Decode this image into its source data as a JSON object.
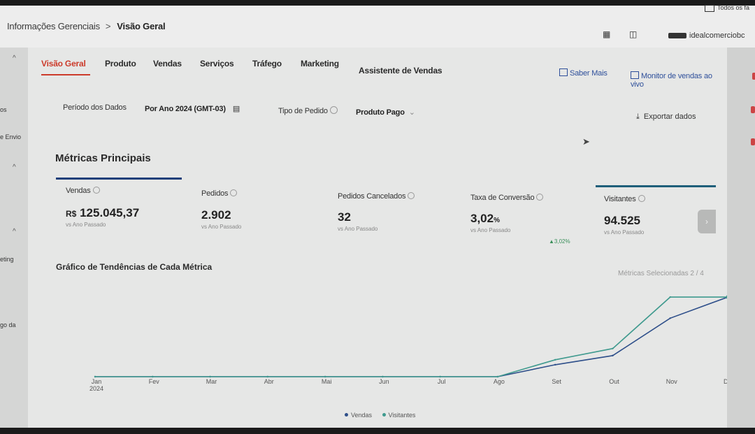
{
  "breadcrumb": {
    "parent": "Informações Gerenciais",
    "separator": ">",
    "current": "Visão Geral"
  },
  "browser": {
    "bookmarks_label": "Todos os fa"
  },
  "user": {
    "store_name": "idealcomerciobc"
  },
  "sidebar": {
    "items": [
      {
        "label": "os"
      },
      {
        "label": "e Envio"
      },
      {
        "label": "eting"
      },
      {
        "label": "go da"
      }
    ],
    "chevron": "^"
  },
  "tabs": [
    {
      "label": "Visão Geral",
      "active": true
    },
    {
      "label": "Produto"
    },
    {
      "label": "Vendas"
    },
    {
      "label": "Serviços"
    },
    {
      "label": "Tráfego"
    },
    {
      "label": "Marketing"
    },
    {
      "label": "Assistente de Vendas"
    }
  ],
  "links": {
    "learn_more": "Saber Mais",
    "live_monitor": "Monitor de vendas ao vivo"
  },
  "filters": {
    "period_label": "Período dos Dados",
    "period_value": "Por Ano  2024 (GMT-03)",
    "order_type_label": "Tipo de Pedido",
    "order_type_value": "Produto Pago"
  },
  "export_label": "Exportar dados",
  "metrics_section": {
    "title": "Métricas Principais"
  },
  "metrics": [
    {
      "label": "Vendas",
      "currency": "R$",
      "value": "125.045,37",
      "comparison": "vs Ano Passado"
    },
    {
      "label": "Pedidos",
      "value": "2.902",
      "comparison": "vs Ano Passado"
    },
    {
      "label": "Pedidos Cancelados",
      "value": "32",
      "comparison": "vs Ano Passado"
    },
    {
      "label": "Taxa de Conversão",
      "value": "3,02",
      "unit": "%",
      "comparison": "vs Ano Passado",
      "delta": "▲3,02%"
    },
    {
      "label": "Visitantes",
      "value": "94.525",
      "comparison": "vs Ano Passado"
    }
  ],
  "chart": {
    "title": "Gráfico de Tendências de Cada Métrica",
    "selected_metrics": "Métricas Selecionadas 2 / 4"
  },
  "chart_data": {
    "type": "line",
    "title": "Gráfico de Tendências de Cada Métrica",
    "categories": [
      "Jan\n2024",
      "Fev",
      "Mar",
      "Abr",
      "Mai",
      "Jun",
      "Jul",
      "Ago",
      "Set",
      "Out",
      "Nov",
      "Dez"
    ],
    "series": [
      {
        "name": "Vendas",
        "color": "#2e4f8a",
        "values": [
          0,
          0,
          0,
          0,
          0,
          0,
          0,
          0,
          0.17,
          0.3,
          0.83,
          1.13
        ]
      },
      {
        "name": "Visitantes",
        "color": "#3f9a8e",
        "values": [
          0,
          0,
          0,
          0,
          0,
          0,
          0,
          0,
          0.24,
          0.4,
          1.13,
          1.13
        ]
      }
    ],
    "ylim": [
      0,
      1.2
    ],
    "grid": false,
    "legend": "bottom-center"
  }
}
